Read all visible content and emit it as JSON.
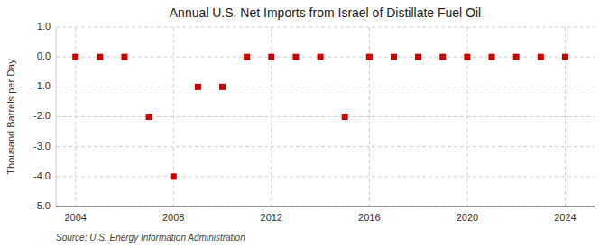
{
  "chart_data": {
    "type": "scatter",
    "title": "Annual U.S. Net Imports from Israel of Distillate Fuel Oil",
    "ylabel": "Thousand Barrels per Day",
    "annotations": [
      "Source: U.S. Energy Information Administration"
    ],
    "x": [
      2004,
      2005,
      2006,
      2007,
      2008,
      2009,
      2010,
      2011,
      2012,
      2013,
      2014,
      2015,
      2016,
      2017,
      2018,
      2019,
      2020,
      2021,
      2022,
      2023,
      2024
    ],
    "values": [
      0,
      0,
      0,
      -2,
      -4,
      -1,
      -1,
      0,
      0,
      0,
      0,
      -2,
      0,
      0,
      0,
      0,
      0,
      0,
      0,
      0,
      0
    ],
    "xlim": [
      2003.2,
      2025.2
    ],
    "xticks": [
      2004,
      2008,
      2012,
      2016,
      2020,
      2024
    ],
    "ylim": [
      -5.0,
      1.0
    ],
    "yticks": [
      {
        "value": -5.0,
        "label": "-5.0"
      },
      {
        "value": -4.0,
        "label": "-4.0"
      },
      {
        "value": -3.0,
        "label": "-3.0"
      },
      {
        "value": -2.0,
        "label": "-2.0"
      },
      {
        "value": -1.0,
        "label": "-1.0"
      },
      {
        "value": 0.0,
        "label": "0.0"
      },
      {
        "value": 1.0,
        "label": "1.0"
      }
    ],
    "color": "#cc0000",
    "marker": "square",
    "grid": true
  }
}
